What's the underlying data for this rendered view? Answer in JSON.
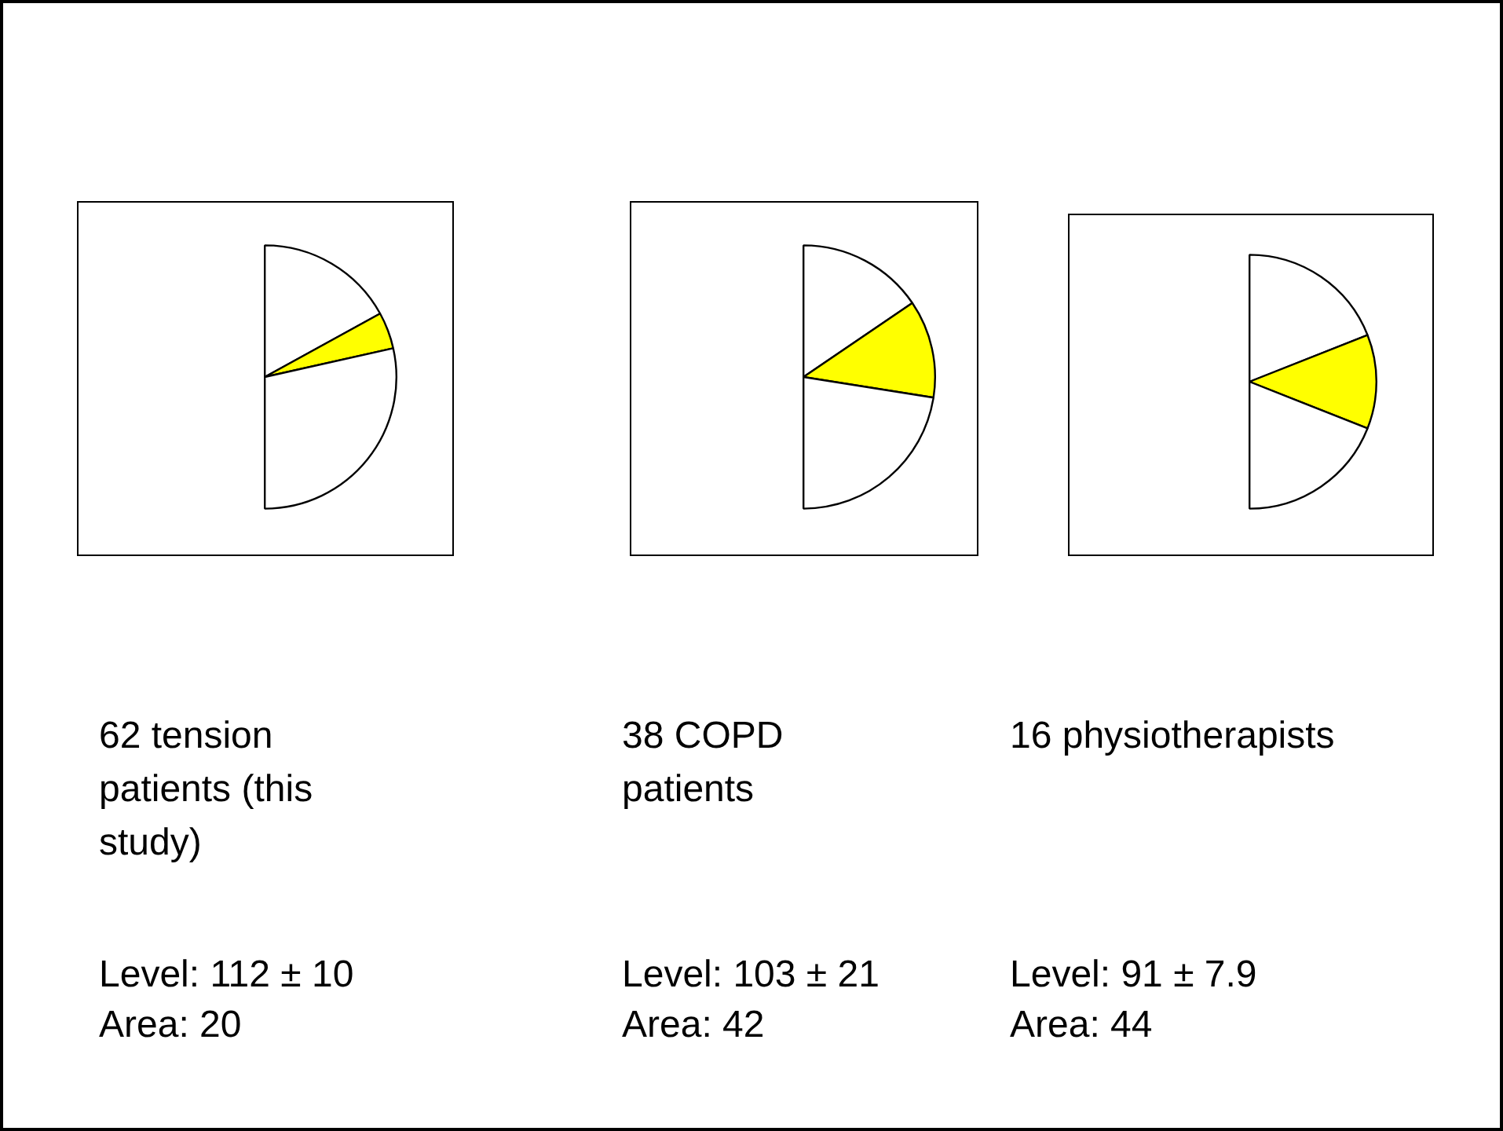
{
  "chart_data": [
    {
      "type": "pie",
      "title": "62 tension patients (this study)",
      "categories": [
        null,
        null,
        null
      ],
      "values": [
        34,
        9,
        57
      ],
      "colors": [
        "#ffffff",
        "#ffff00",
        "#ffffff"
      ],
      "annotations": [
        "Level: 112 ± 10",
        "Area: 20"
      ]
    },
    {
      "type": "pie",
      "title": "38 COPD patients",
      "categories": [
        null,
        null,
        null
      ],
      "values": [
        31,
        24,
        45
      ],
      "colors": [
        "#ffffff",
        "#ffff00",
        "#ffffff"
      ],
      "annotations": [
        "Level: 103 ± 21",
        "Area: 42"
      ]
    },
    {
      "type": "pie",
      "title": "16 physiotherapists",
      "categories": [
        null,
        null,
        null
      ],
      "values": [
        38,
        24,
        38
      ],
      "colors": [
        "#ffffff",
        "#ffff00",
        "#ffffff"
      ],
      "annotations": [
        "Level: 91 ± 7.9",
        "Area: 44"
      ]
    }
  ]
}
